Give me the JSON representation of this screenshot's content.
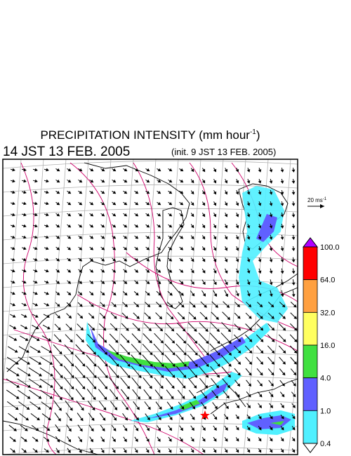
{
  "title": {
    "main": "PRECIPITATION INTENSITY (mm hour",
    "exponent": "-1",
    "close": ")"
  },
  "valid_time": "14 JST 13 FEB. 2005",
  "init_time": "(init. 9 JST 13 FEB. 2005)",
  "reference_vector": {
    "label": "20 ms",
    "exponent": "-1"
  },
  "colorbar": {
    "levels": [
      "100.0",
      "64.0",
      "32.0",
      "16.0",
      "4.0",
      "1.0",
      "0.4"
    ],
    "over_color": "#b000ff",
    "colors": [
      "#ff0000",
      "#ffa040",
      "#ffff60",
      "#40e040",
      "#6060ff",
      "#50f0ff"
    ],
    "under_color": "#ffffff"
  }
}
